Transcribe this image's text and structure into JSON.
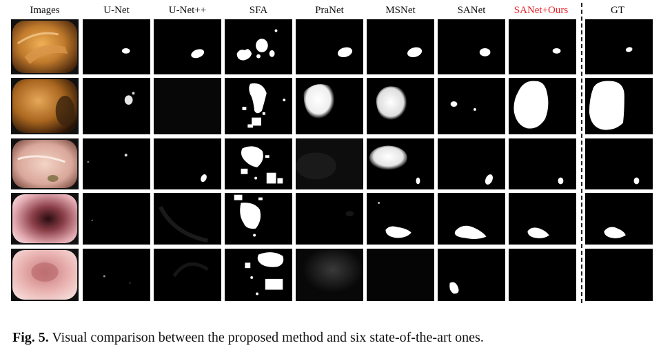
{
  "figure": {
    "columns": [
      {
        "id": "images",
        "label": "Images",
        "highlight": false
      },
      {
        "id": "unet",
        "label": "U-Net",
        "highlight": false
      },
      {
        "id": "unetpp",
        "label": "U-Net++",
        "highlight": false
      },
      {
        "id": "sfa",
        "label": "SFA",
        "highlight": false
      },
      {
        "id": "pranet",
        "label": "PraNet",
        "highlight": false
      },
      {
        "id": "msnet",
        "label": "MSNet",
        "highlight": false
      },
      {
        "id": "sanet",
        "label": "SANet",
        "highlight": false
      },
      {
        "id": "ours",
        "label": "SANet+Ours",
        "highlight": true
      },
      {
        "id": "gt",
        "label": "GT",
        "highlight": false
      }
    ],
    "rows": 5,
    "colors": {
      "highlight": "#e8232a",
      "mask_fg": "#ffffff",
      "mask_bg": "#000000"
    }
  },
  "caption": {
    "label": "Fig. 5.",
    "text": " Visual comparison between the proposed method and six state-of-the-art ones."
  }
}
